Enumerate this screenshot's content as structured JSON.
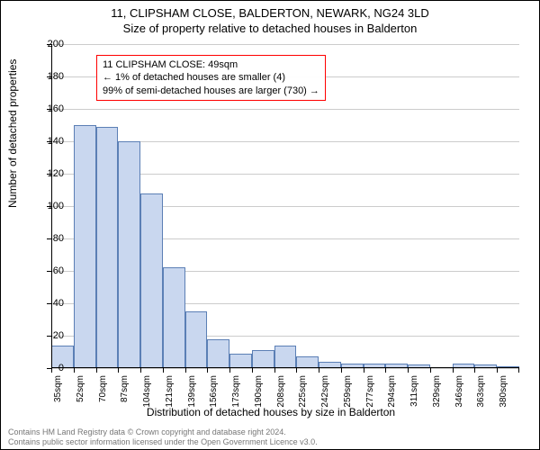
{
  "title": "11, CLIPSHAM CLOSE, BALDERTON, NEWARK, NG24 3LD",
  "subtitle": "Size of property relative to detached houses in Balderton",
  "chart": {
    "type": "histogram",
    "ylabel": "Number of detached properties",
    "xlabel": "Distribution of detached houses by size in Balderton",
    "ylim": [
      0,
      200
    ],
    "ytick_step": 20,
    "bar_fill": "#c9d7ef",
    "bar_stroke": "#5b7fb5",
    "grid_color": "#cccccc",
    "background_color": "#ffffff",
    "x_categories": [
      "35sqm",
      "52sqm",
      "70sqm",
      "87sqm",
      "104sqm",
      "121sqm",
      "139sqm",
      "156sqm",
      "173sqm",
      "190sqm",
      "208sqm",
      "225sqm",
      "242sqm",
      "259sqm",
      "277sqm",
      "294sqm",
      "311sqm",
      "329sqm",
      "346sqm",
      "363sqm",
      "380sqm"
    ],
    "values": [
      14,
      150,
      149,
      140,
      108,
      62,
      35,
      18,
      9,
      11,
      14,
      7,
      4,
      3,
      3,
      3,
      2,
      0,
      3,
      2,
      1
    ]
  },
  "annotation": {
    "line1": "11 CLIPSHAM CLOSE: 49sqm",
    "line2": "← 1% of detached houses are smaller (4)",
    "line3": "99% of semi-detached houses are larger (730) →",
    "border_color": "#ff0000"
  },
  "footer": {
    "line1": "Contains HM Land Registry data © Crown copyright and database right 2024.",
    "line2": "Contains public sector information licensed under the Open Government Licence v3.0."
  }
}
